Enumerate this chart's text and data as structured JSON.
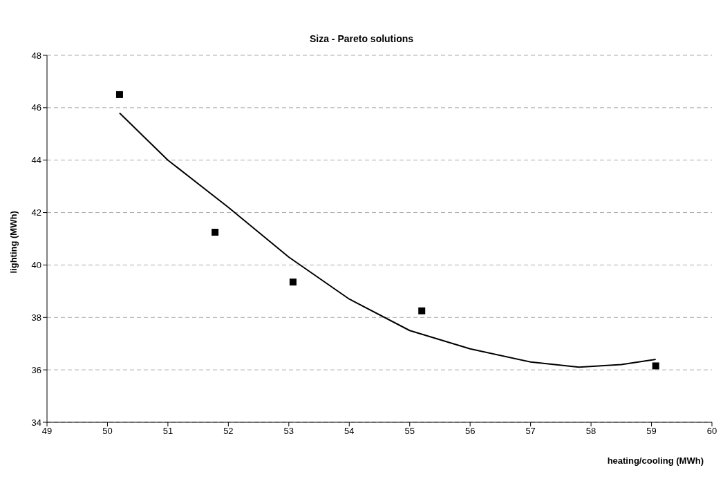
{
  "chart_data": {
    "type": "scatter",
    "title": "Siza - Pareto solutions",
    "xlabel": "heating/cooling (MWh)",
    "ylabel": "lighting (MWh)",
    "series": [
      {
        "marker": "square",
        "color": "#000000",
        "x": [
          50.2,
          51.78,
          53.07,
          55.2,
          59.07
        ],
        "values": [
          46.5,
          41.25,
          39.35,
          38.25,
          36.15
        ]
      },
      {
        "type": "line",
        "marker": "none",
        "color": "#000000",
        "line_style": "solid",
        "x": [
          50.2,
          51,
          52,
          53,
          54,
          55,
          56,
          57,
          57.8,
          58.5,
          59.07
        ],
        "values": [
          45.8,
          44.0,
          42.2,
          40.3,
          38.7,
          37.5,
          36.8,
          36.3,
          36.1,
          36.2,
          36.4
        ]
      }
    ],
    "xlim": [
      49,
      60
    ],
    "xticks": [
      49,
      50,
      51,
      52,
      53,
      54,
      55,
      56,
      57,
      58,
      59,
      60
    ],
    "ylim": [
      34,
      48
    ],
    "yticks": [
      34,
      36,
      38,
      40,
      42,
      44,
      46,
      48
    ],
    "grid": "y",
    "legend": false
  }
}
